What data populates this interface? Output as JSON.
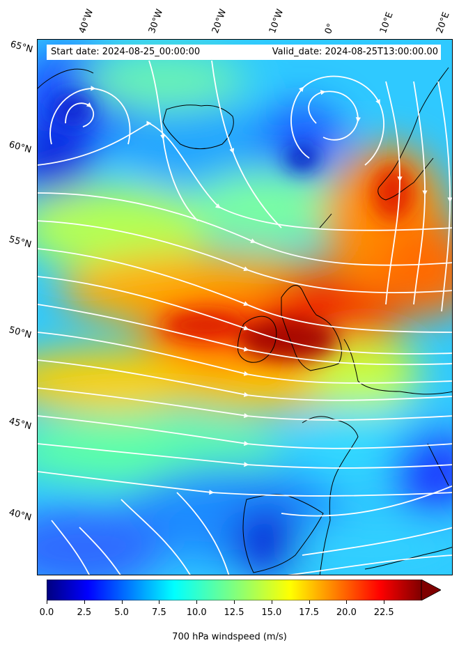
{
  "header": {
    "start_date": "Start date: 2024-08-25_00:00:00",
    "valid_date": "Valid_date: 2024-08-25T13:00:00.00"
  },
  "lon_labels": [
    "40°W",
    "30°W",
    "20°W",
    "10°W",
    "0°",
    "10°E",
    "20°E"
  ],
  "lat_labels": [
    "65°N",
    "60°N",
    "55°N",
    "50°N",
    "45°N",
    "40°N"
  ],
  "colorbar": {
    "label": "700 hPa windspeed (m/s)",
    "ticks": [
      "0.0",
      "2.5",
      "5.0",
      "7.5",
      "10.0",
      "12.5",
      "15.0",
      "17.5",
      "20.0",
      "22.5"
    ],
    "min": 0,
    "max": 25,
    "extend": "max",
    "colormap": "jet"
  },
  "colors": {
    "streamline": "#ffffff",
    "coastline": "#000000"
  }
}
